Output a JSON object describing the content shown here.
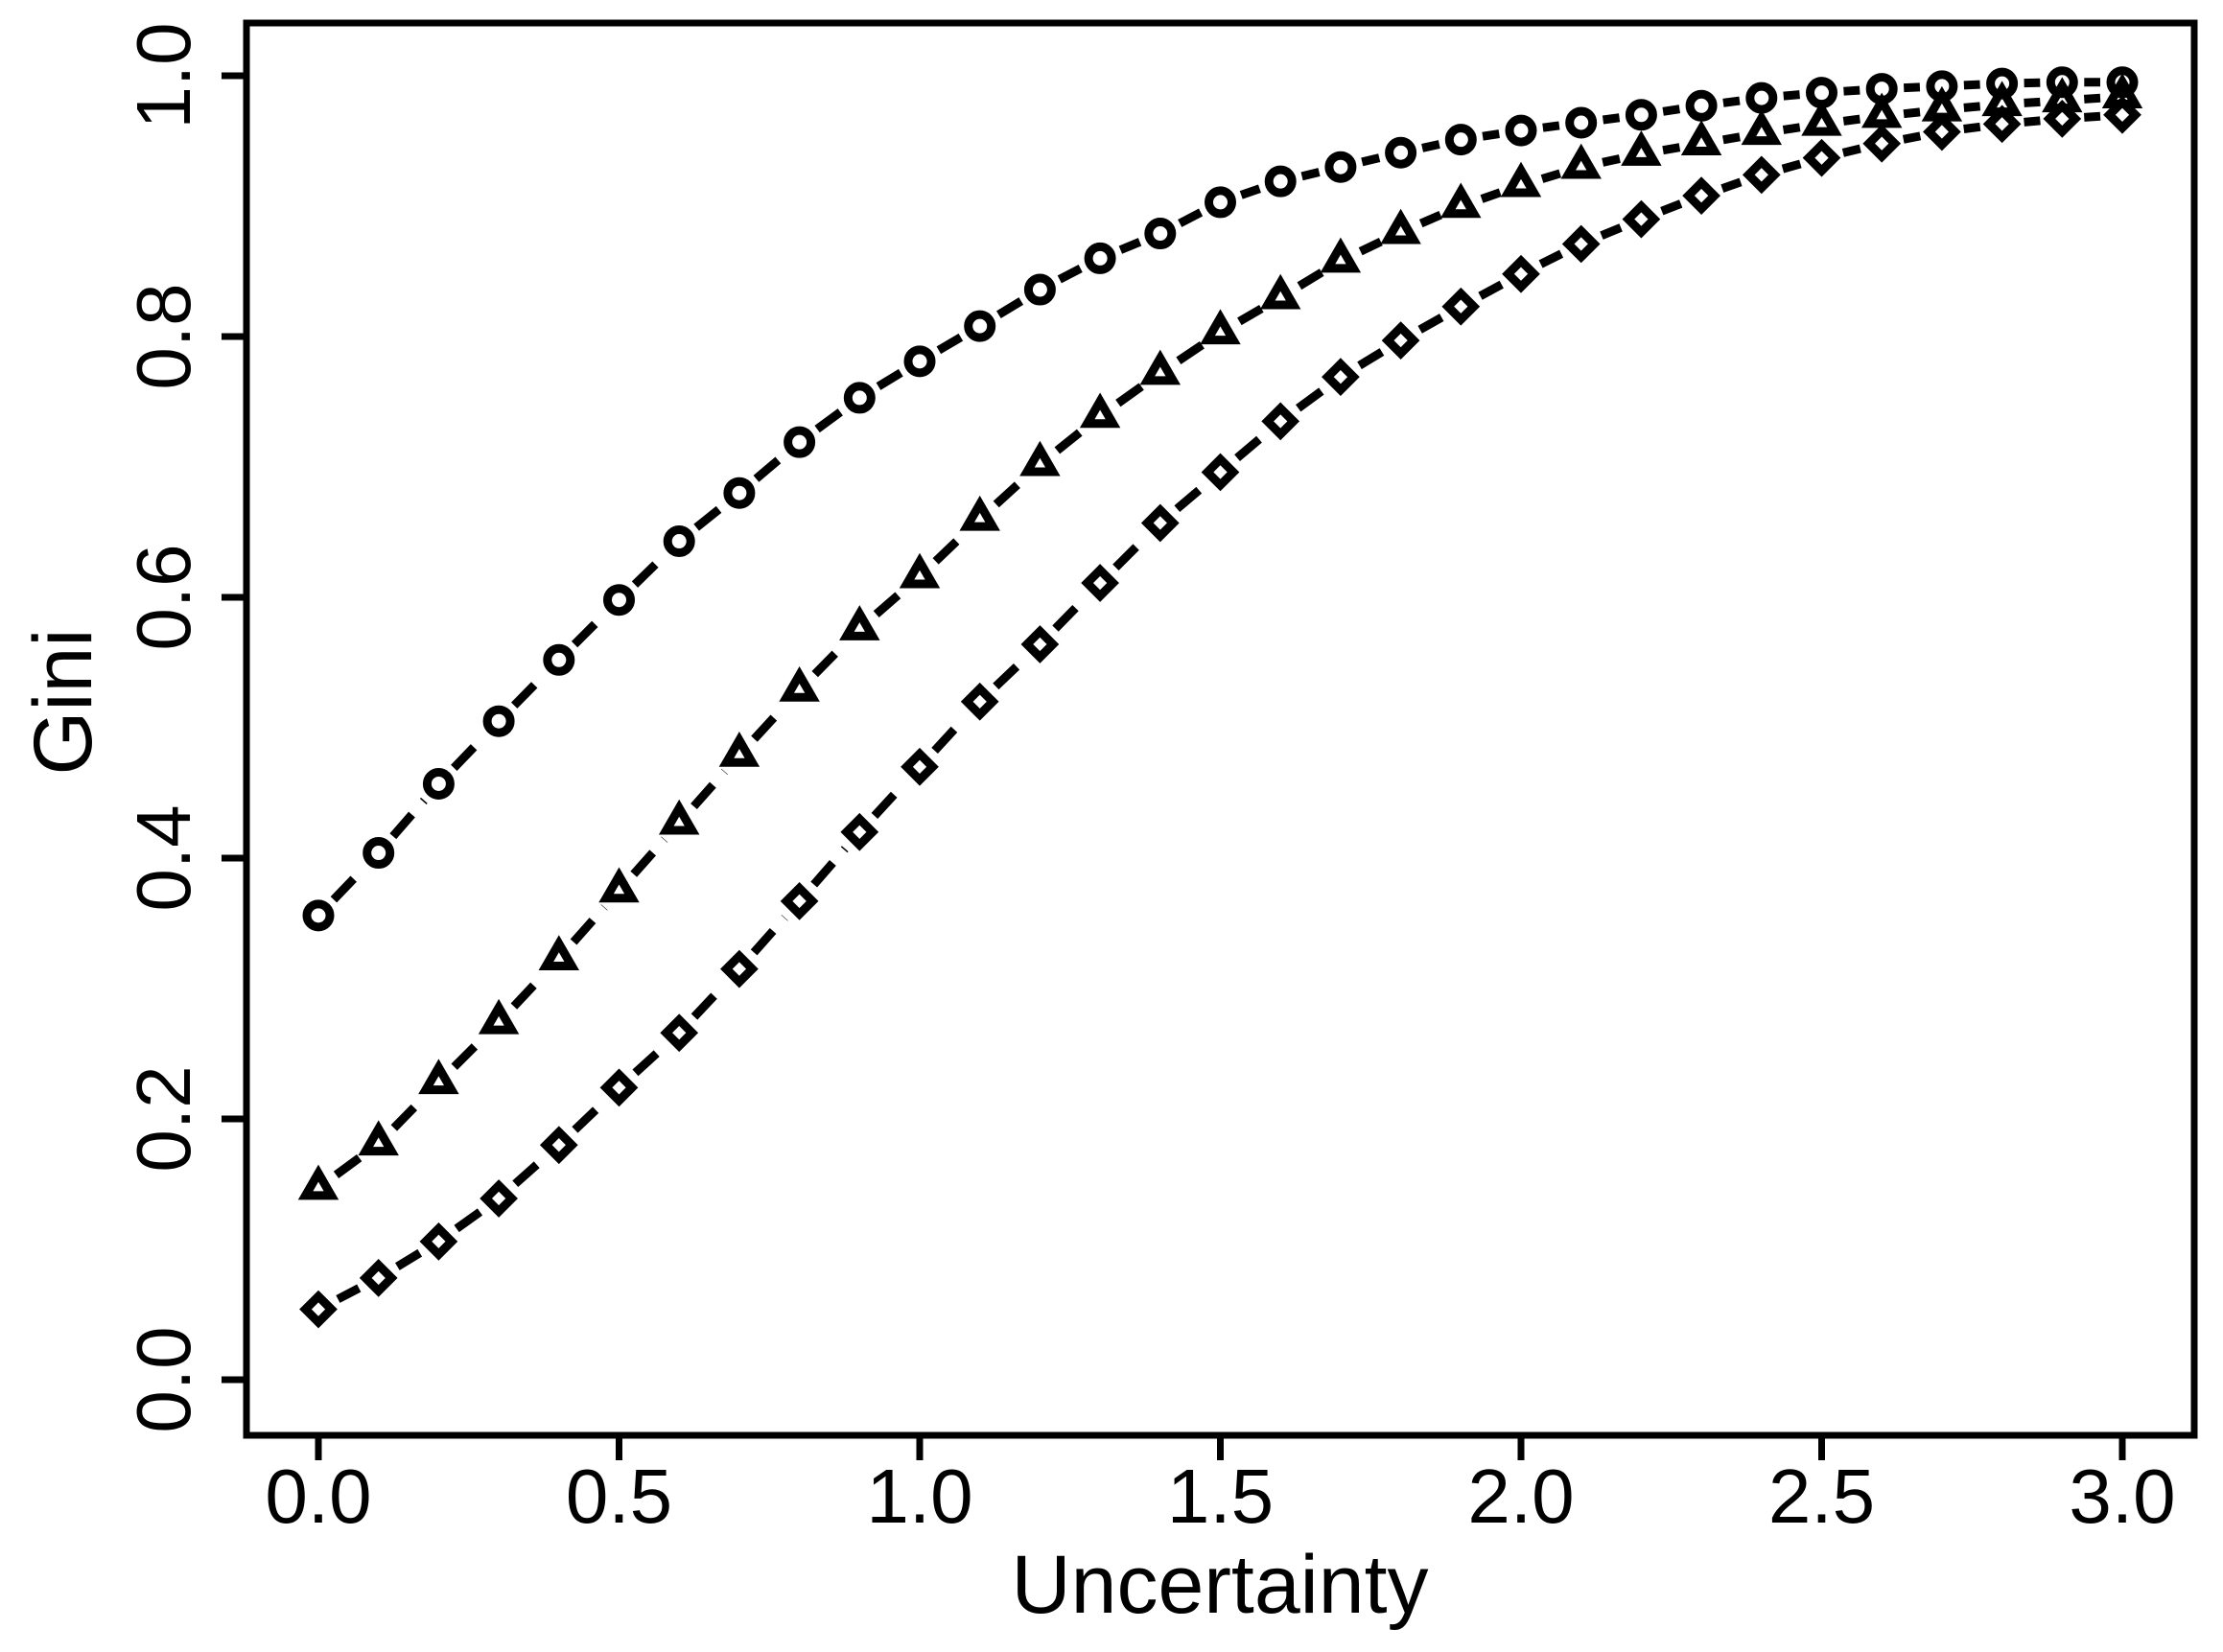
{
  "figure": {
    "background": "#ffffff",
    "foreground": "#000000"
  },
  "chart_data": {
    "type": "line",
    "title": "",
    "xlabel": "Uncertainty",
    "ylabel": "Gini",
    "xlim": [
      0.0,
      3.0
    ],
    "ylim": [
      0.0,
      1.0
    ],
    "grid": false,
    "legend": "none",
    "x_ticks": [
      0.0,
      0.5,
      1.0,
      1.5,
      2.0,
      2.5,
      3.0
    ],
    "x_tick_labels": [
      "0.0",
      "0.5",
      "1.0",
      "1.5",
      "2.0",
      "2.5",
      "3.0"
    ],
    "y_ticks": [
      0.0,
      0.2,
      0.4,
      0.6,
      0.8,
      1.0
    ],
    "y_tick_labels": [
      "0.0",
      "0.2",
      "0.4",
      "0.6",
      "0.8",
      "1.0"
    ],
    "x": [
      0.0,
      0.1,
      0.2,
      0.3,
      0.4,
      0.5,
      0.6,
      0.7,
      0.8,
      0.9,
      1.0,
      1.1,
      1.2,
      1.3,
      1.4,
      1.5,
      1.6,
      1.7,
      1.8,
      1.9,
      2.0,
      2.1,
      2.2,
      2.3,
      2.4,
      2.5,
      2.6,
      2.7,
      2.8,
      2.9,
      3.0
    ],
    "series": [
      {
        "name": "circle-series",
        "marker": "circle-icon",
        "linestyle": "dashed",
        "color": "#000000",
        "values": [
          0.356,
          0.404,
          0.457,
          0.505,
          0.552,
          0.598,
          0.643,
          0.68,
          0.719,
          0.753,
          0.781,
          0.808,
          0.836,
          0.86,
          0.879,
          0.903,
          0.919,
          0.93,
          0.941,
          0.951,
          0.958,
          0.964,
          0.97,
          0.977,
          0.983,
          0.987,
          0.99,
          0.992,
          0.994,
          0.995,
          0.995
        ]
      },
      {
        "name": "triangle-series",
        "marker": "triangle-up-icon",
        "linestyle": "dashed",
        "color": "#000000",
        "values": [
          0.147,
          0.181,
          0.228,
          0.274,
          0.323,
          0.375,
          0.427,
          0.479,
          0.529,
          0.576,
          0.616,
          0.66,
          0.702,
          0.739,
          0.772,
          0.803,
          0.83,
          0.858,
          0.88,
          0.9,
          0.916,
          0.93,
          0.94,
          0.948,
          0.956,
          0.963,
          0.969,
          0.974,
          0.978,
          0.981,
          0.984
        ]
      },
      {
        "name": "diamond-series",
        "marker": "diamond-icon",
        "linestyle": "dashed",
        "color": "#000000",
        "values": [
          0.054,
          0.078,
          0.106,
          0.139,
          0.18,
          0.224,
          0.266,
          0.315,
          0.367,
          0.42,
          0.47,
          0.52,
          0.564,
          0.611,
          0.657,
          0.696,
          0.735,
          0.769,
          0.797,
          0.823,
          0.848,
          0.871,
          0.89,
          0.908,
          0.924,
          0.937,
          0.948,
          0.957,
          0.963,
          0.967,
          0.97
        ]
      }
    ]
  }
}
